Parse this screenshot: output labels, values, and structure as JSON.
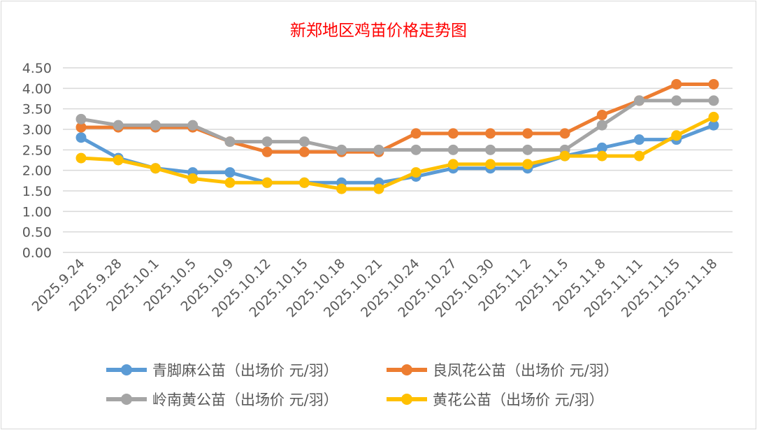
{
  "chart_data": {
    "type": "line",
    "title": "新郑地区鸡苗价格走势图",
    "xlabel": "",
    "ylabel": "",
    "ylim": [
      0,
      4.5
    ],
    "yticks": [
      "0.00",
      "0.50",
      "1.00",
      "1.50",
      "2.00",
      "2.50",
      "3.00",
      "3.50",
      "4.00",
      "4.50"
    ],
    "grid": true,
    "legend_position": "bottom",
    "categories": [
      "2025.9.24",
      "2025.9.28",
      "2025.10.1",
      "2025.10.5",
      "2025.10.9",
      "2025.10.12",
      "2025.10.15",
      "2025.10.18",
      "2025.10.21",
      "2025.10.24",
      "2025.10.27",
      "2025.10.30",
      "2025.11.2",
      "2025.11.5",
      "2025.11.8",
      "2025.11.11",
      "2025.11.15",
      "2025.11.18"
    ],
    "series": [
      {
        "name": "青脚麻公苗（出场价 元/羽）",
        "color": "#5b9bd5",
        "values": [
          2.8,
          2.3,
          2.05,
          1.95,
          1.95,
          1.7,
          1.7,
          1.7,
          1.7,
          1.85,
          2.05,
          2.05,
          2.05,
          2.35,
          2.55,
          2.75,
          2.75,
          3.1
        ]
      },
      {
        "name": "良凤花公苗（出场价 元/羽）",
        "color": "#ed7d31",
        "values": [
          3.05,
          3.05,
          3.05,
          3.05,
          2.7,
          2.45,
          2.45,
          2.45,
          2.45,
          2.9,
          2.9,
          2.9,
          2.9,
          2.9,
          3.35,
          3.7,
          4.1,
          4.1
        ]
      },
      {
        "name": "岭南黄公苗（出场价 元/羽）",
        "color": "#a5a5a5",
        "values": [
          3.25,
          3.1,
          3.1,
          3.1,
          2.7,
          2.7,
          2.7,
          2.5,
          2.5,
          2.5,
          2.5,
          2.5,
          2.5,
          2.5,
          3.1,
          3.7,
          3.7,
          3.7
        ]
      },
      {
        "name": "黄花公苗（出场价 元/羽）",
        "color": "#ffc000",
        "values": [
          2.3,
          2.25,
          2.05,
          1.8,
          1.7,
          1.7,
          1.7,
          1.55,
          1.55,
          1.95,
          2.15,
          2.15,
          2.15,
          2.35,
          2.35,
          2.35,
          2.85,
          3.3
        ]
      }
    ]
  }
}
